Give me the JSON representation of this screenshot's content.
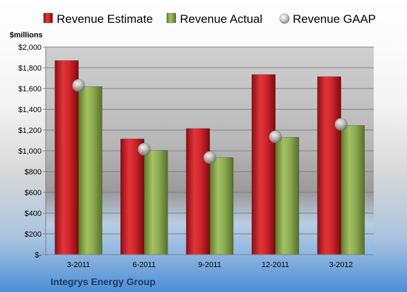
{
  "chart_data": {
    "type": "bar",
    "y_unit_label": "$millions",
    "company": "Integrys Energy Group",
    "categories": [
      "3-2011",
      "6-2011",
      "9-2011",
      "12-2011",
      "3-2012"
    ],
    "series": [
      {
        "name": "Revenue Estimate",
        "kind": "bar",
        "color": "#cc1f24",
        "values": [
          1870,
          1115,
          1215,
          1735,
          1715
        ]
      },
      {
        "name": "Revenue Actual",
        "kind": "bar",
        "color": "#86a44a",
        "values": [
          1620,
          1005,
          935,
          1130,
          1245
        ]
      },
      {
        "name": "Revenue GAAP",
        "kind": "marker",
        "color": "#b0b0b0",
        "values": [
          1630,
          1015,
          935,
          1135,
          1255
        ]
      }
    ],
    "ylim": [
      0,
      2000
    ],
    "yticks": [
      0,
      200,
      400,
      600,
      800,
      1000,
      1200,
      1400,
      1600,
      1800,
      2000
    ],
    "ytick_labels": [
      "$-",
      "$200",
      "$400",
      "$600",
      "$800",
      "$1,000",
      "$1,200",
      "$1,400",
      "$1,600",
      "$1,800",
      "$2,000"
    ],
    "grid": true,
    "legend_position": "top"
  }
}
